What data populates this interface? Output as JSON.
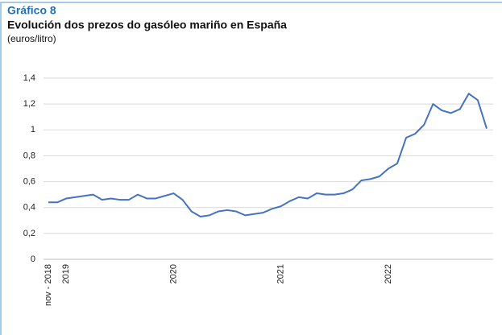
{
  "chart_data": {
    "type": "line",
    "label": "Gráfico 8",
    "title": "Evolución dos prezos do gasóleo mariño en España",
    "subtitle": "(euros/litro)",
    "categories": [
      "nov - 2018",
      null,
      "2019",
      null,
      null,
      null,
      null,
      null,
      null,
      null,
      null,
      null,
      null,
      null,
      "2020",
      null,
      null,
      null,
      null,
      null,
      null,
      null,
      null,
      null,
      null,
      null,
      "2021",
      null,
      null,
      null,
      null,
      null,
      null,
      null,
      null,
      null,
      null,
      null,
      "2022",
      null,
      null,
      null,
      null,
      null,
      null,
      null,
      null,
      null,
      null,
      null
    ],
    "values": [
      0.44,
      0.44,
      0.47,
      0.48,
      0.49,
      0.5,
      0.46,
      0.47,
      0.46,
      0.46,
      0.5,
      0.47,
      0.47,
      0.49,
      0.51,
      0.46,
      0.37,
      0.33,
      0.34,
      0.37,
      0.38,
      0.37,
      0.34,
      0.35,
      0.36,
      0.39,
      0.41,
      0.45,
      0.48,
      0.47,
      0.51,
      0.5,
      0.5,
      0.51,
      0.54,
      0.61,
      0.62,
      0.64,
      0.7,
      0.74,
      0.94,
      0.97,
      1.04,
      1.2,
      1.15,
      1.13,
      1.16,
      1.28,
      1.23,
      1.01
    ],
    "color": "#4472c4",
    "ylim": [
      0,
      1.4
    ],
    "yticks": [
      0,
      {
        "value": 0.2,
        "label": "0,2"
      },
      {
        "value": 0.4,
        "label": "0,4"
      },
      {
        "value": 0.6,
        "label": "0,6"
      },
      {
        "value": 0.8,
        "label": "0,8"
      },
      1,
      {
        "value": 1.2,
        "label": "1,2"
      },
      {
        "value": 1.4,
        "label": "1,4"
      }
    ],
    "grid": true
  }
}
